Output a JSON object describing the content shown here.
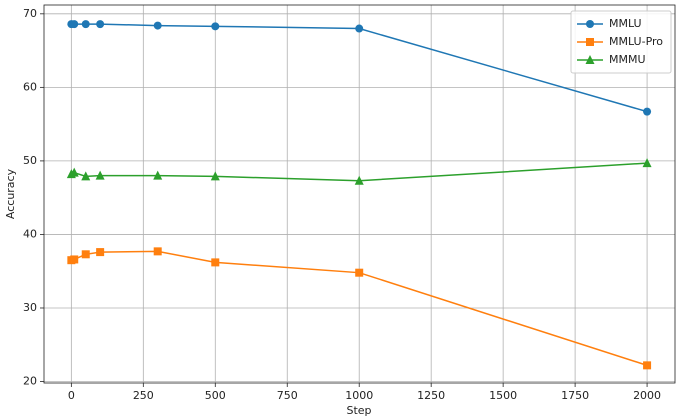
{
  "chart_data": {
    "type": "line",
    "x_label": "Step",
    "y_label": "Accuracy",
    "x": [
      0,
      10,
      50,
      100,
      300,
      500,
      1000,
      2000
    ],
    "series": [
      {
        "name": "MMLU",
        "color": "#1f77b4",
        "marker": "circle",
        "values": [
          68.6,
          68.6,
          68.6,
          68.6,
          68.4,
          68.3,
          68.0,
          56.7
        ]
      },
      {
        "name": "MMLU-Pro",
        "color": "#ff7f0e",
        "marker": "square",
        "values": [
          36.5,
          36.6,
          37.3,
          37.6,
          37.7,
          36.2,
          34.8,
          22.2
        ]
      },
      {
        "name": "MMMU",
        "color": "#2ca02c",
        "marker": "triangle",
        "values": [
          48.2,
          48.4,
          47.9,
          48.0,
          48.0,
          47.9,
          47.3,
          49.7
        ]
      }
    ],
    "xlim": [
      -95,
      2097
    ],
    "ylim": [
      19.8,
      71.2
    ],
    "xticks": [
      0,
      250,
      500,
      750,
      1000,
      1250,
      1500,
      1750,
      2000
    ],
    "yticks": [
      20,
      30,
      40,
      50,
      60,
      70
    ],
    "grid": true,
    "legend": "upper right"
  }
}
